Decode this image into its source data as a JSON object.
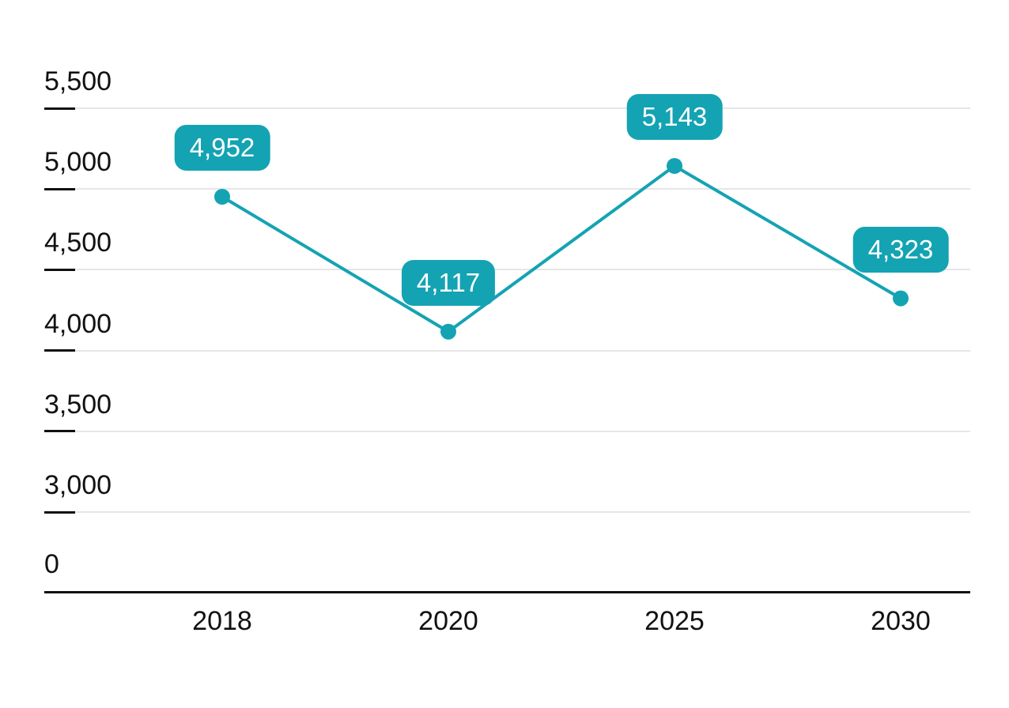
{
  "chart_data": {
    "type": "line",
    "title": "",
    "xlabel": "",
    "ylabel": "",
    "legend": "none",
    "grid": true,
    "categories": [
      "2018",
      "2020",
      "2025",
      "2030"
    ],
    "values": [
      4952,
      4117,
      5143,
      4323
    ],
    "value_labels": [
      "4,952",
      "4,117",
      "5,143",
      "4,323"
    ],
    "y_axis": {
      "tick_labels": [
        "5,500",
        "5,000",
        "4,500",
        "4,000",
        "3,500",
        "3,000",
        "0"
      ],
      "tick_values": [
        5500,
        5000,
        4500,
        4000,
        3500,
        3000,
        0
      ],
      "broken_axis": true,
      "plot_range": [
        3000,
        5500
      ]
    },
    "colors": {
      "line": "#14A3B3",
      "point": "#14A3B3",
      "label_bg": "#14A3B3",
      "label_text": "#FFFFFF",
      "gridline": "#E6E6E6",
      "axis": "#111111",
      "text": "#111111",
      "background": "#FFFFFF"
    }
  }
}
